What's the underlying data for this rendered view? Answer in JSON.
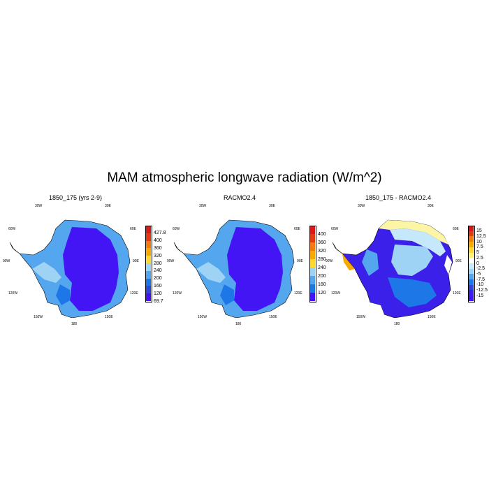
{
  "title": "MAM atmospheric longwave radiation (W/m^2)",
  "panels": [
    {
      "title": "1850_175 (yrs 2-9)",
      "colorbar": {
        "ticks": [
          "427.8",
          "400",
          "360",
          "320",
          "280",
          "240",
          "200",
          "160",
          "120",
          "69.7"
        ],
        "colors": [
          "#d7191c",
          "#e23a12",
          "#f37a0f",
          "#f9a800",
          "#fdd835",
          "#9fd3f5",
          "#54a7ee",
          "#1e77e6",
          "#2f46d8",
          "#4315f5"
        ]
      },
      "lon_labels": {
        "top_left": "30W",
        "top_right": "30E",
        "mid_left_top": "60W",
        "mid_right_top": "60E",
        "left": "90W",
        "right": "90E",
        "bottom_left": "120W",
        "bottom_right": "120E",
        "lower_left": "150W",
        "lower_right": "150E",
        "bottom": "180"
      }
    },
    {
      "title": "RACMO2.4",
      "colorbar": {
        "ticks": [
          "400",
          "360",
          "320",
          "280",
          "240",
          "200",
          "160",
          "120"
        ],
        "colors": [
          "#d7191c",
          "#e23a12",
          "#f37a0f",
          "#f9a800",
          "#fdd835",
          "#9fd3f5",
          "#54a7ee",
          "#1e77e6",
          "#4315f5"
        ]
      },
      "lon_labels": {
        "top_left": "30W",
        "top_right": "30E",
        "mid_left_top": "60W",
        "mid_right_top": "60E",
        "left": "90W",
        "right": "90E",
        "bottom_left": "120W",
        "bottom_right": "120E",
        "lower_left": "150W",
        "lower_right": "150E",
        "bottom": "180"
      }
    },
    {
      "title": "1850_175 - RACMO2.4",
      "colorbar": {
        "ticks": [
          "15",
          "12.5",
          "10",
          "7.5",
          "5",
          "2.5",
          "0",
          "-2.5",
          "-5",
          "-7.5",
          "-10",
          "-12.5",
          "-15"
        ],
        "colors": [
          "#d7191c",
          "#e23a12",
          "#f37a0f",
          "#f9a800",
          "#fdd835",
          "#fff176",
          "#ffffff",
          "#c6e8fb",
          "#9fd3f5",
          "#54a7ee",
          "#1e77e6",
          "#2f46d8",
          "#3a20e8",
          "#4315f5"
        ]
      },
      "lon_labels": {
        "top_left": "30W",
        "top_right": "30E",
        "mid_left_top": "60W",
        "mid_right_top": "60E",
        "left": "90W",
        "right": "90E",
        "bottom_left": "120W",
        "bottom_right": "120E",
        "lower_left": "150W",
        "lower_right": "150E",
        "bottom": "180"
      }
    }
  ]
}
